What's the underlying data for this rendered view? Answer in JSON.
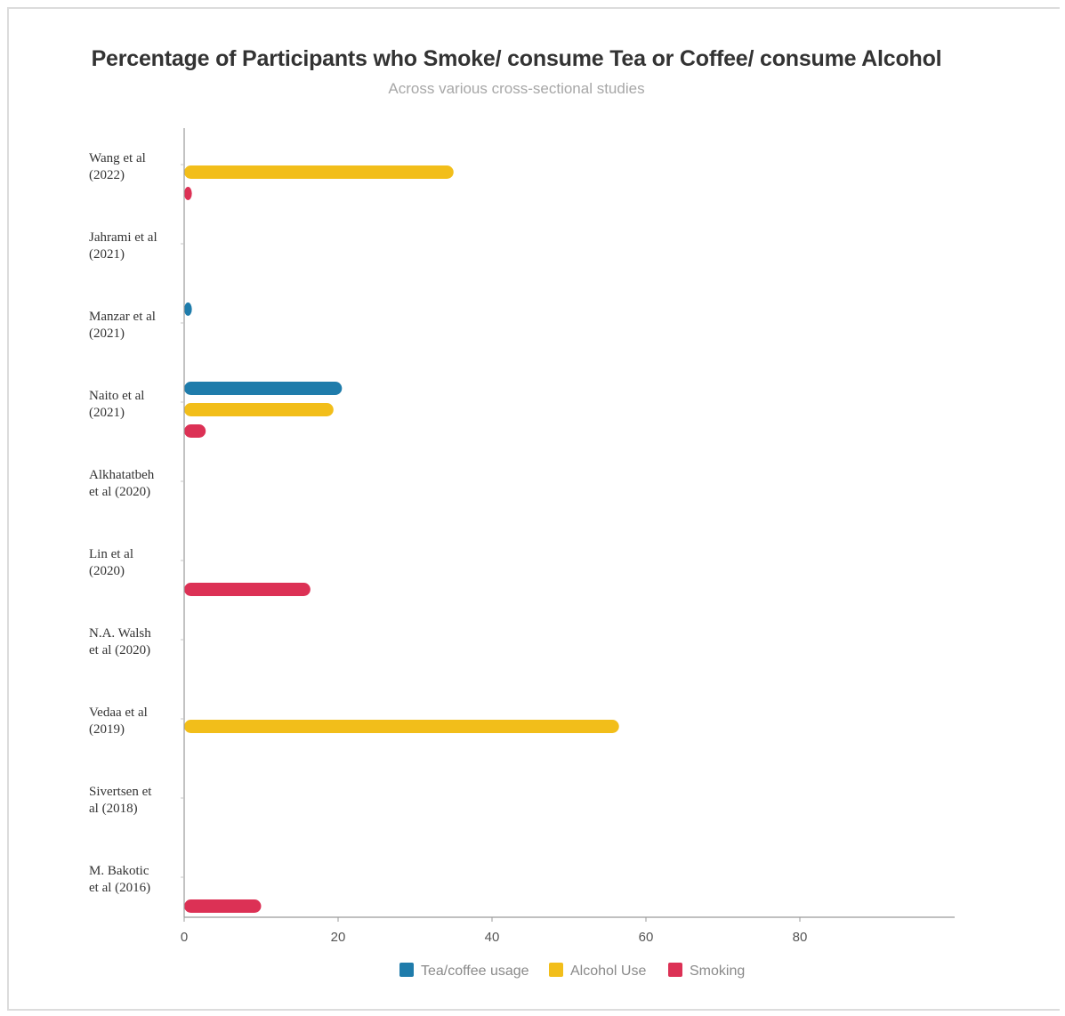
{
  "title": "Percentage of Participants who Smoke/ consume Tea or Coffee/ consume Alcohol",
  "subtitle": "Across various cross-sectional studies",
  "chart_data": {
    "type": "bar",
    "orientation": "horizontal",
    "title": "Percentage of Participants who Smoke/ consume Tea or Coffee/ consume Alcohol",
    "subtitle": "Across various cross-sectional studies",
    "categories": [
      [
        "Wang et al",
        "(2022)"
      ],
      [
        "Jahrami et al",
        "(2021)"
      ],
      [
        "Manzar et al",
        "(2021)"
      ],
      [
        "Naito et al",
        "(2021)"
      ],
      [
        "Alkhatatbeh",
        "et al (2020)"
      ],
      [
        "Lin et al",
        "(2020)"
      ],
      [
        "N.A. Walsh",
        "et al (2020)"
      ],
      [
        "Vedaa et al",
        "(2019)"
      ],
      [
        "Sivertsen et",
        "al (2018)"
      ],
      [
        "M. Bakotic",
        "et al (2016)"
      ]
    ],
    "series": [
      {
        "name": "Tea/coffee usage",
        "color": "#1f7cab",
        "values": [
          0,
          0,
          1,
          20.5,
          0,
          0,
          0,
          0,
          0,
          0
        ]
      },
      {
        "name": "Alcohol Use",
        "color": "#f2be1a",
        "values": [
          35,
          0,
          0,
          19.4,
          0,
          0,
          0,
          56.5,
          0,
          0
        ]
      },
      {
        "name": "Smoking",
        "color": "#dc3155",
        "values": [
          1,
          0,
          0,
          2.8,
          0,
          16.4,
          0,
          0,
          0,
          10
        ]
      }
    ],
    "xlim": [
      0,
      100
    ],
    "xticks": [
      0,
      20,
      40,
      60,
      80
    ],
    "grid": false,
    "legend_position": "bottom-center"
  }
}
